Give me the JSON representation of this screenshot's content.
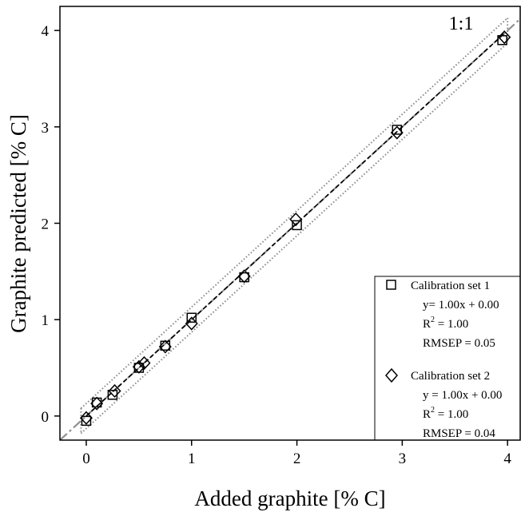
{
  "chart_data": {
    "type": "scatter",
    "xlabel": "Added graphite [% C]",
    "ylabel": "Graphite predicted [% C]",
    "xlim": [
      -0.25,
      4.12
    ],
    "ylim": [
      -0.25,
      4.25
    ],
    "xticks": [
      0,
      1,
      2,
      3,
      4
    ],
    "yticks": [
      0,
      1,
      2,
      3,
      4
    ],
    "grid": false,
    "legend_position": "bottom-right",
    "annotation": "1:1",
    "series": [
      {
        "name": "Calibration set 1",
        "marker": "square",
        "points": [
          {
            "x": 0.0,
            "y": -0.05
          },
          {
            "x": 0.1,
            "y": 0.14
          },
          {
            "x": 0.25,
            "y": 0.22
          },
          {
            "x": 0.5,
            "y": 0.5
          },
          {
            "x": 0.75,
            "y": 0.73
          },
          {
            "x": 1.0,
            "y": 1.02
          },
          {
            "x": 1.5,
            "y": 1.44
          },
          {
            "x": 2.0,
            "y": 1.98
          },
          {
            "x": 2.95,
            "y": 2.97
          },
          {
            "x": 3.95,
            "y": 3.9
          }
        ],
        "legend_lines": [
          "Calibration set 1",
          "y= 1.00x + 0.00",
          "R",
          "2",
          " = 1.00",
          "RMSEP = 0.05"
        ]
      },
      {
        "name": "Calibration set 2",
        "marker": "diamond",
        "points": [
          {
            "x": 0.0,
            "y": -0.02
          },
          {
            "x": 0.1,
            "y": 0.13
          },
          {
            "x": 0.27,
            "y": 0.26
          },
          {
            "x": 0.5,
            "y": 0.51
          },
          {
            "x": 0.55,
            "y": 0.55
          },
          {
            "x": 0.75,
            "y": 0.72
          },
          {
            "x": 1.0,
            "y": 0.96
          },
          {
            "x": 1.5,
            "y": 1.45
          },
          {
            "x": 1.99,
            "y": 2.04
          },
          {
            "x": 2.95,
            "y": 2.94
          },
          {
            "x": 3.97,
            "y": 3.93
          }
        ],
        "legend_lines": [
          "Calibration set 2",
          "y = 1.00x + 0.00",
          "R",
          "2",
          " = 1.00",
          "RMSEP = 0.04"
        ]
      }
    ],
    "reference_line": {
      "slope": 1,
      "intercept": 0,
      "style": "dash-dot",
      "color": "#909090"
    },
    "fit_line": {
      "slope": 1.0,
      "intercept": 0.0,
      "style": "dashed",
      "color": "#000000"
    },
    "confidence_band": {
      "offset": 0.13,
      "style": "dotted",
      "color": "#8a8a8a"
    }
  },
  "legend": {
    "set1": {
      "label": "Calibration set 1",
      "eq": "y= 1.00x + 0.00",
      "r": "R",
      "r_sup": "2",
      "r_val": " = 1.00",
      "rmsep": "RMSEP = 0.05"
    },
    "set2": {
      "label": "Calibration set 2",
      "eq": "y = 1.00x + 0.00",
      "r": "R",
      "r_sup": "2",
      "r_val": " = 1.00",
      "rmsep": "RMSEP = 0.04"
    }
  },
  "axes": {
    "xlabel": "Added graphite [% C]",
    "ylabel": "Graphite predicted [% C]",
    "xtick_labels": [
      "0",
      "1",
      "2",
      "3",
      "4"
    ],
    "ytick_labels": [
      "0",
      "1",
      "2",
      "3",
      "4"
    ],
    "annotation": "1:1"
  },
  "colors": {
    "reference": "#909090",
    "band": "#8a8a8a",
    "fit": "#000000"
  }
}
